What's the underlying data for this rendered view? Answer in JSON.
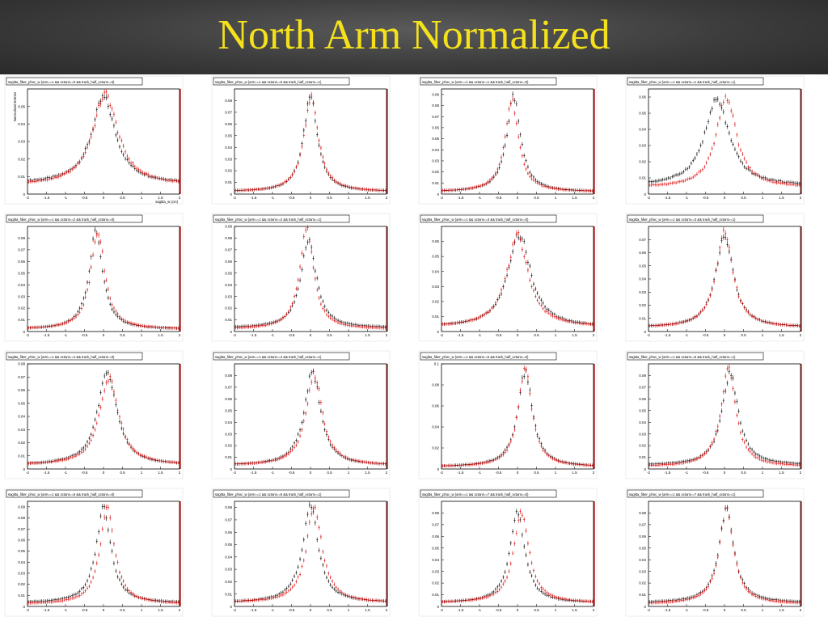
{
  "slide": {
    "title": "North Arm Normalized"
  },
  "colors": {
    "series_a": "#000000",
    "series_b": "#e00000",
    "frame_red": "#b00000"
  },
  "chart_data": [
    {
      "type": "scatter",
      "title": "sagitta_fiber_phoc_w {arm==1 && octant==0 && track_half_octant==0}",
      "ylabel": "Normalized Entries",
      "xlabel": "sagitta_w (cm)",
      "xlim": [
        -2,
        2
      ],
      "ylim": [
        0,
        0.06
      ],
      "yticks": [
        0.01,
        0.02,
        0.03,
        0.04,
        0.05
      ],
      "xticks": [
        "-2",
        "-1.5",
        "-1",
        "-0.5",
        "0",
        "0.5",
        "1",
        "1.5",
        "2"
      ],
      "series": [
        {
          "values": {
            "peak": 0.055,
            "mu": 0.0,
            "w": 0.38,
            "base": 0.006
          }
        },
        {
          "values": {
            "peak": 0.057,
            "mu": 0.05,
            "w": 0.4,
            "base": 0.005
          }
        }
      ]
    },
    {
      "type": "scatter",
      "title": "sagitta_fiber_phoc_w {arm==1 && octant==0 && track_half_octant==1}",
      "xlim": [
        -2,
        2
      ],
      "ylim": [
        0,
        0.09
      ],
      "yticks": [
        0.01,
        0.02,
        0.03,
        0.04,
        0.05,
        0.06,
        0.07,
        0.08
      ],
      "xticks": [
        "-2",
        "-1.5",
        "-1",
        "-0.5",
        "0",
        "0.5",
        "1",
        "1.5",
        "2"
      ],
      "series": [
        {
          "values": {
            "peak": 0.085,
            "mu": 0.0,
            "w": 0.22,
            "base": 0.002
          }
        },
        {
          "values": {
            "peak": 0.083,
            "mu": 0.02,
            "w": 0.23,
            "base": 0.002
          }
        }
      ]
    },
    {
      "type": "scatter",
      "title": "sagitta_fiber_phoc_w {arm==1 && octant==1 && track_half_octant==0}",
      "xlim": [
        -2,
        2
      ],
      "ylim": [
        0,
        0.095
      ],
      "yticks": [
        0.01,
        0.02,
        0.03,
        0.04,
        0.05,
        0.06,
        0.07,
        0.08,
        0.09
      ],
      "xticks": [
        "-2",
        "-1.5",
        "-1",
        "-0.5",
        "0",
        "0.5",
        "1",
        "1.5",
        "2"
      ],
      "series": [
        {
          "values": {
            "peak": 0.088,
            "mu": -0.1,
            "w": 0.22,
            "base": 0.002
          }
        },
        {
          "values": {
            "peak": 0.084,
            "mu": -0.15,
            "w": 0.22,
            "base": 0.002
          }
        }
      ]
    },
    {
      "type": "scatter",
      "title": "sagitta_fiber_phoc_w {arm==1 && octant==1 && track_half_octant==1}",
      "xlim": [
        -2,
        2
      ],
      "ylim": [
        0,
        0.065
      ],
      "yticks": [
        0.01,
        0.02,
        0.03,
        0.04,
        0.05,
        0.06
      ],
      "xticks": [
        "-2",
        "-1.5",
        "-1",
        "-0.5",
        "0",
        "0.5",
        "1",
        "1.5",
        "2"
      ],
      "series": [
        {
          "values": {
            "peak": 0.058,
            "mu": -0.2,
            "w": 0.4,
            "base": 0.005
          }
        },
        {
          "values": {
            "peak": 0.06,
            "mu": 0.05,
            "w": 0.32,
            "base": 0.004
          }
        }
      ]
    },
    {
      "type": "scatter",
      "title": "sagitta_fiber_phoc_w {arm==1 && octant==2 && track_half_octant==0}",
      "xlim": [
        -2,
        2
      ],
      "ylim": [
        0,
        0.09
      ],
      "yticks": [
        0.01,
        0.02,
        0.03,
        0.04,
        0.05,
        0.06,
        0.07,
        0.08
      ],
      "xticks": [
        "-2",
        "-1.5",
        "-1",
        "-0.5",
        "0",
        "0.5",
        "1",
        "1.5",
        "2"
      ],
      "series": [
        {
          "values": {
            "peak": 0.085,
            "mu": -0.2,
            "w": 0.22,
            "base": 0.002
          }
        },
        {
          "values": {
            "peak": 0.087,
            "mu": -0.15,
            "w": 0.22,
            "base": 0.002
          }
        }
      ]
    },
    {
      "type": "scatter",
      "title": "sagitta_fiber_phoc_w {arm==1 && octant==2 && track_half_octant==1}",
      "xlim": [
        -2,
        2
      ],
      "ylim": [
        0,
        0.09
      ],
      "yticks": [
        0.01,
        0.02,
        0.03,
        0.04,
        0.05,
        0.06,
        0.07,
        0.08,
        0.09
      ],
      "xticks": [
        "-2",
        "-1.5",
        "-1",
        "-0.5",
        "0",
        "0.5",
        "1",
        "1.5",
        "2"
      ],
      "series": [
        {
          "values": {
            "peak": 0.08,
            "mu": -0.05,
            "w": 0.24,
            "base": 0.003
          }
        },
        {
          "values": {
            "peak": 0.089,
            "mu": -0.1,
            "w": 0.22,
            "base": 0.002
          }
        }
      ]
    },
    {
      "type": "scatter",
      "title": "sagitta_fiber_phoc_w {arm==1 && octant==3 && track_half_octant==0}",
      "xlim": [
        -2,
        2
      ],
      "ylim": [
        0,
        0.07
      ],
      "yticks": [
        0.01,
        0.02,
        0.03,
        0.04,
        0.05,
        0.06
      ],
      "xticks": [
        "-2",
        "-1.5",
        "-1",
        "-0.5",
        "0",
        "0.5",
        "1",
        "1.5",
        "2"
      ],
      "series": [
        {
          "values": {
            "peak": 0.065,
            "mu": 0.05,
            "w": 0.36,
            "base": 0.003
          }
        },
        {
          "values": {
            "peak": 0.064,
            "mu": 0.0,
            "w": 0.34,
            "base": 0.003
          }
        }
      ]
    },
    {
      "type": "scatter",
      "title": "sagitta_fiber_phoc_w {arm==1 && octant==3 && track_half_octant==1}",
      "xlim": [
        -2,
        2
      ],
      "ylim": [
        0,
        0.08
      ],
      "yticks": [
        0.01,
        0.02,
        0.03,
        0.04,
        0.05,
        0.06,
        0.07
      ],
      "xticks": [
        "-2",
        "-1.5",
        "-1",
        "-0.5",
        "0",
        "0.5",
        "1",
        "1.5",
        "2"
      ],
      "series": [
        {
          "values": {
            "peak": 0.073,
            "mu": 0.0,
            "w": 0.28,
            "base": 0.003
          }
        },
        {
          "values": {
            "peak": 0.075,
            "mu": 0.0,
            "w": 0.27,
            "base": 0.003
          }
        }
      ]
    },
    {
      "type": "scatter",
      "title": "sagitta_fiber_phoc_w {arm==1 && octant==4 && track_half_octant==0}",
      "xlim": [
        -2,
        2
      ],
      "ylim": [
        0,
        0.08
      ],
      "yticks": [
        0.01,
        0.02,
        0.03,
        0.04,
        0.05,
        0.06,
        0.07,
        0.08
      ],
      "xticks": [
        "-2",
        "-1.5",
        "-1",
        "-0.5",
        "0",
        "0.5",
        "1",
        "1.5",
        "2"
      ],
      "series": [
        {
          "values": {
            "peak": 0.075,
            "mu": 0.1,
            "w": 0.3,
            "base": 0.003
          }
        },
        {
          "values": {
            "peak": 0.07,
            "mu": 0.15,
            "w": 0.3,
            "base": 0.003
          }
        }
      ]
    },
    {
      "type": "scatter",
      "title": "sagitta_fiber_phoc_w {arm==1 && octant==4 && track_half_octant==1}",
      "xlim": [
        -2,
        2
      ],
      "ylim": [
        0,
        0.09
      ],
      "yticks": [
        0.01,
        0.02,
        0.03,
        0.04,
        0.05,
        0.06,
        0.07,
        0.08
      ],
      "xticks": [
        "-2",
        "-1.5",
        "-1",
        "-0.5",
        "0",
        "0.5",
        "1",
        "1.5",
        "2"
      ],
      "series": [
        {
          "values": {
            "peak": 0.083,
            "mu": 0.05,
            "w": 0.26,
            "base": 0.003
          }
        },
        {
          "values": {
            "peak": 0.081,
            "mu": 0.1,
            "w": 0.26,
            "base": 0.003
          }
        }
      ]
    },
    {
      "type": "scatter",
      "title": "sagitta_fiber_phoc_w {arm==1 && octant==5 && track_half_octant==0}",
      "xlim": [
        -2,
        2
      ],
      "ylim": [
        0,
        0.1
      ],
      "yticks": [
        0.02,
        0.04,
        0.06,
        0.08,
        0.1
      ],
      "xticks": [
        "-2",
        "-1.5",
        "-1",
        "-0.5",
        "0",
        "0.5",
        "1",
        "1.5",
        "2"
      ],
      "series": [
        {
          "values": {
            "peak": 0.092,
            "mu": 0.2,
            "w": 0.24,
            "base": 0.002
          }
        },
        {
          "values": {
            "peak": 0.095,
            "mu": 0.2,
            "w": 0.22,
            "base": 0.002
          }
        }
      ]
    },
    {
      "type": "scatter",
      "title": "sagitta_fiber_phoc_w {arm==1 && octant==5 && track_half_octant==1}",
      "xlim": [
        -2,
        2
      ],
      "ylim": [
        0,
        0.09
      ],
      "yticks": [
        0.01,
        0.02,
        0.03,
        0.04,
        0.05,
        0.06,
        0.07,
        0.08
      ],
      "xticks": [
        "-2",
        "-1.5",
        "-1",
        "-0.5",
        "0",
        "0.5",
        "1",
        "1.5",
        "2"
      ],
      "series": [
        {
          "values": {
            "peak": 0.082,
            "mu": 0.15,
            "w": 0.26,
            "base": 0.003
          }
        },
        {
          "values": {
            "peak": 0.085,
            "mu": 0.1,
            "w": 0.24,
            "base": 0.002
          }
        }
      ]
    },
    {
      "type": "scatter",
      "title": "sagitta_fiber_phoc_w {arm==1 && octant==6 && track_half_octant==0}",
      "xlim": [
        -2,
        2
      ],
      "ylim": [
        0,
        0.095
      ],
      "yticks": [
        0.01,
        0.02,
        0.03,
        0.04,
        0.05,
        0.06,
        0.07,
        0.08,
        0.09
      ],
      "xticks": [
        "-2",
        "-1.5",
        "-1",
        "-0.5",
        "0",
        "0.5",
        "1",
        "1.5",
        "2"
      ],
      "series": [
        {
          "values": {
            "peak": 0.088,
            "mu": 0.0,
            "w": 0.24,
            "base": 0.003
          }
        },
        {
          "values": {
            "peak": 0.091,
            "mu": 0.1,
            "w": 0.23,
            "base": 0.002
          }
        }
      ]
    },
    {
      "type": "scatter",
      "title": "sagitta_fiber_phoc_w {arm==1 && octant==6 && track_half_octant==1}",
      "xlim": [
        -2,
        2
      ],
      "ylim": [
        0,
        0.085
      ],
      "yticks": [
        0.01,
        0.02,
        0.03,
        0.04,
        0.05,
        0.06,
        0.07,
        0.08
      ],
      "xticks": [
        "-2",
        "-1.5",
        "-1",
        "-0.5",
        "0",
        "0.5",
        "1",
        "1.5",
        "2"
      ],
      "series": [
        {
          "values": {
            "peak": 0.08,
            "mu": 0.0,
            "w": 0.26,
            "base": 0.003
          }
        },
        {
          "values": {
            "peak": 0.081,
            "mu": 0.1,
            "w": 0.25,
            "base": 0.003
          }
        }
      ]
    },
    {
      "type": "scatter",
      "title": "sagitta_fiber_phoc_w {arm==1 && octant==7 && track_half_octant==0}",
      "xlim": [
        -2,
        2
      ],
      "ylim": [
        0,
        0.09
      ],
      "yticks": [
        0.01,
        0.02,
        0.03,
        0.04,
        0.05,
        0.06,
        0.07,
        0.08
      ],
      "xticks": [
        "-2",
        "-1.5",
        "-1",
        "-0.5",
        "0",
        "0.5",
        "1",
        "1.5",
        "2"
      ],
      "series": [
        {
          "values": {
            "peak": 0.08,
            "mu": 0.0,
            "w": 0.24,
            "base": 0.003
          }
        },
        {
          "values": {
            "peak": 0.081,
            "mu": 0.1,
            "w": 0.24,
            "base": 0.003
          }
        }
      ]
    },
    {
      "type": "scatter",
      "title": "sagitta_fiber_phoc_w {arm==1 && octant==7 && track_half_octant==1}",
      "xlim": [
        -2,
        2
      ],
      "ylim": [
        0,
        0.09
      ],
      "yticks": [
        0.01,
        0.02,
        0.03,
        0.04,
        0.05,
        0.06,
        0.07,
        0.08
      ],
      "xticks": [
        "-2",
        "-1.5",
        "-1",
        "-0.5",
        "0",
        "0.5",
        "1",
        "1.5",
        "2"
      ],
      "series": [
        {
          "values": {
            "peak": 0.082,
            "mu": 0.05,
            "w": 0.24,
            "base": 0.003
          }
        },
        {
          "values": {
            "peak": 0.084,
            "mu": 0.05,
            "w": 0.23,
            "base": 0.002
          }
        }
      ]
    }
  ]
}
